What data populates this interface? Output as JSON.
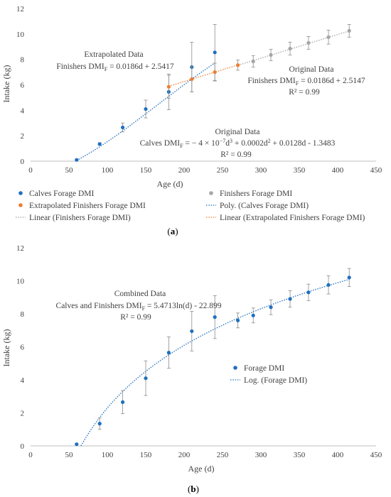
{
  "chart_data": [
    {
      "type": "scatter",
      "panel_label": "(a)",
      "xlabel": "Age (d)",
      "ylabel": "Intake (kg)",
      "xlim": [
        0,
        450
      ],
      "ylim": [
        0,
        12
      ],
      "xticks": [
        0,
        50,
        100,
        150,
        200,
        250,
        300,
        350,
        400,
        450
      ],
      "yticks": [
        0,
        2,
        4,
        6,
        8,
        10,
        12
      ],
      "grid": false,
      "series": [
        {
          "name": "Calves Forage DMI",
          "color": "#1f6fc0",
          "x": [
            60,
            90,
            120,
            150,
            180,
            210,
            240
          ],
          "y": [
            0.1,
            1.35,
            2.65,
            4.1,
            5.45,
            7.4,
            8.55
          ],
          "err": [
            0,
            0.1,
            0.35,
            0.7,
            1.4,
            1.95,
            2.2
          ]
        },
        {
          "name": "Extrapolated Finishers Forage DMI",
          "color": "#ed7d31",
          "x": [
            180,
            210,
            240,
            270
          ],
          "y": [
            5.85,
            6.45,
            7.0,
            7.55
          ],
          "err": [
            0.9,
            1.0,
            0.7,
            0.4
          ]
        },
        {
          "name": "Finishers Forage DMI",
          "color": "#a5a5a5",
          "x": [
            290,
            313,
            338,
            362,
            388,
            415
          ],
          "y": [
            7.85,
            8.35,
            8.85,
            9.3,
            9.75,
            10.25
          ],
          "err": [
            0.45,
            0.45,
            0.5,
            0.5,
            0.55,
            0.5
          ]
        }
      ],
      "trendlines": [
        {
          "name": "Poly. (Calves Forage DMI)",
          "color": "#1f6fc0",
          "kind": "poly3",
          "coef": [
            -4e-07,
            0.0002,
            0.0128,
            -1.3483
          ],
          "x_range": [
            60,
            240
          ]
        },
        {
          "name": "Linear (Finishers Forage DMI)",
          "color": "#a5a5a5",
          "kind": "linear",
          "slope": 0.0186,
          "intercept": 2.5147,
          "x_range": [
            270,
            415
          ]
        },
        {
          "name": "Linear (Extrapolated Finishers Forage DMI)",
          "color": "#ed7d31",
          "kind": "linear",
          "slope": 0.0186,
          "intercept": 2.5417,
          "x_range": [
            180,
            270
          ]
        }
      ],
      "annotations": {
        "extrap_title": "Extrapolated Data",
        "extrap_eq_pre": "Finishers DMI",
        "extrap_eq_sub": "F",
        "extrap_eq_post": "  = 0.0186d + 2.5417",
        "orig_fin_title": "Original Data",
        "orig_fin_eq_pre": "Finishers DMI",
        "orig_fin_eq_sub": "F",
        "orig_fin_eq_post": " = 0.0186d + 2.5147",
        "orig_fin_r2": "R² = 0.99",
        "orig_calf_title": "Original Data",
        "orig_calf_eq_pre": "Calves DMI",
        "orig_calf_eq_sub": "F",
        "orig_calf_eq_mid1": " = − 4 × 10",
        "orig_calf_eq_exp1": "−7",
        "orig_calf_eq_mid2": "d",
        "orig_calf_eq_exp2": "3",
        "orig_calf_eq_mid3": " + 0.0002d",
        "orig_calf_eq_exp3": "2",
        "orig_calf_eq_post": " + 0.0128d - 1.3483",
        "orig_calf_r2": "R² = 0.99"
      },
      "legend": [
        {
          "label": "Calves Forage DMI",
          "kind": "marker",
          "color": "#1f6fc0"
        },
        {
          "label": "Finishers Forage DMI",
          "kind": "marker",
          "color": "#a5a5a5"
        },
        {
          "label": "Extrapolated Finishers Forage DMI",
          "kind": "marker",
          "color": "#ed7d31"
        },
        {
          "label": "Poly. (Calves Forage DMI)",
          "kind": "dotted",
          "color": "#1f6fc0"
        },
        {
          "label": "Linear (Finishers Forage DMI)",
          "kind": "dotted",
          "color": "#a5a5a5"
        },
        {
          "label": "Linear (Extrapolated Finishers Forage DMI)",
          "kind": "dotted",
          "color": "#ed7d31"
        }
      ]
    },
    {
      "type": "scatter",
      "panel_label": "(b)",
      "xlabel": "Age (d)",
      "ylabel": "Intake (kg)",
      "xlim": [
        0,
        450
      ],
      "ylim": [
        0,
        12
      ],
      "xticks": [
        0,
        50,
        100,
        150,
        200,
        250,
        300,
        350,
        400,
        450
      ],
      "yticks": [
        0,
        2,
        4,
        6,
        8,
        10,
        12
      ],
      "grid": false,
      "series": [
        {
          "name": "Forage DMI",
          "color": "#1f6fc0",
          "x": [
            60,
            90,
            120,
            150,
            180,
            210,
            240,
            270,
            290,
            313,
            338,
            362,
            388,
            415
          ],
          "y": [
            0.1,
            1.35,
            2.65,
            4.1,
            5.65,
            6.95,
            7.8,
            7.6,
            7.9,
            8.4,
            8.9,
            9.3,
            9.75,
            10.2
          ],
          "err": [
            0,
            0.35,
            0.7,
            1.05,
            0.95,
            1.2,
            1.3,
            0.45,
            0.45,
            0.45,
            0.5,
            0.5,
            0.55,
            0.55
          ]
        }
      ],
      "trendlines": [
        {
          "name": "Log. (Forage DMI)",
          "color": "#1f6fc0",
          "kind": "log",
          "a": 5.4713,
          "b": -22.899,
          "x_range": [
            65.5,
            415
          ]
        }
      ],
      "annotations": {
        "comb_title": "Combined Data",
        "comb_eq_pre": "Calves and Finishers DMI",
        "comb_eq_sub": "F",
        "comb_eq_post": " = 5.4713ln(d) - 22.899",
        "comb_r2": "R² = 0.99"
      },
      "legend": [
        {
          "label": "Forage DMI",
          "kind": "marker",
          "color": "#1f6fc0"
        },
        {
          "label": "Log. (Forage DMI)",
          "kind": "dotted",
          "color": "#1f6fc0"
        }
      ]
    }
  ]
}
